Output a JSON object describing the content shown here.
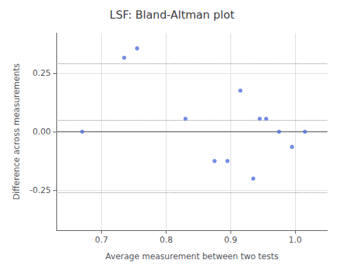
{
  "chart_data": {
    "type": "scatter",
    "title": "LSF: Bland-Altman plot",
    "xlabel": "Average measurement between two tests",
    "ylabel": "Difference across measurements",
    "xlim": [
      0.63,
      1.05
    ],
    "ylim": [
      -0.42,
      0.42
    ],
    "xticks": [
      0.7,
      0.8,
      0.9,
      {
        "value": 1.0,
        "label": "1.0"
      }
    ],
    "yticks": [
      -0.25,
      {
        "value": 0.0,
        "label": "0.00"
      },
      0.25
    ],
    "grid": true,
    "x": [
      0.67,
      0.735,
      0.755,
      0.83,
      0.875,
      0.895,
      0.915,
      0.935,
      0.945,
      0.955,
      0.975,
      0.995,
      1.015
    ],
    "values": [
      0.0,
      0.315,
      0.355,
      0.055,
      -0.125,
      -0.125,
      0.175,
      -0.2,
      0.055,
      0.055,
      0.0,
      -0.065,
      0.0
    ],
    "hlines": [
      {
        "value": 0.0,
        "line_style": "solid",
        "color": "#808080"
      },
      {
        "value": 0.295,
        "line_style": "dotted",
        "color": "#808080"
      },
      {
        "value": -0.255,
        "line_style": "dotted",
        "color": "#808080"
      },
      {
        "value": 0.05,
        "line_style": "dotted",
        "color": "#808080"
      },
      {
        "value": 0.0,
        "line_style": "dotted",
        "color": "#808080"
      }
    ]
  }
}
